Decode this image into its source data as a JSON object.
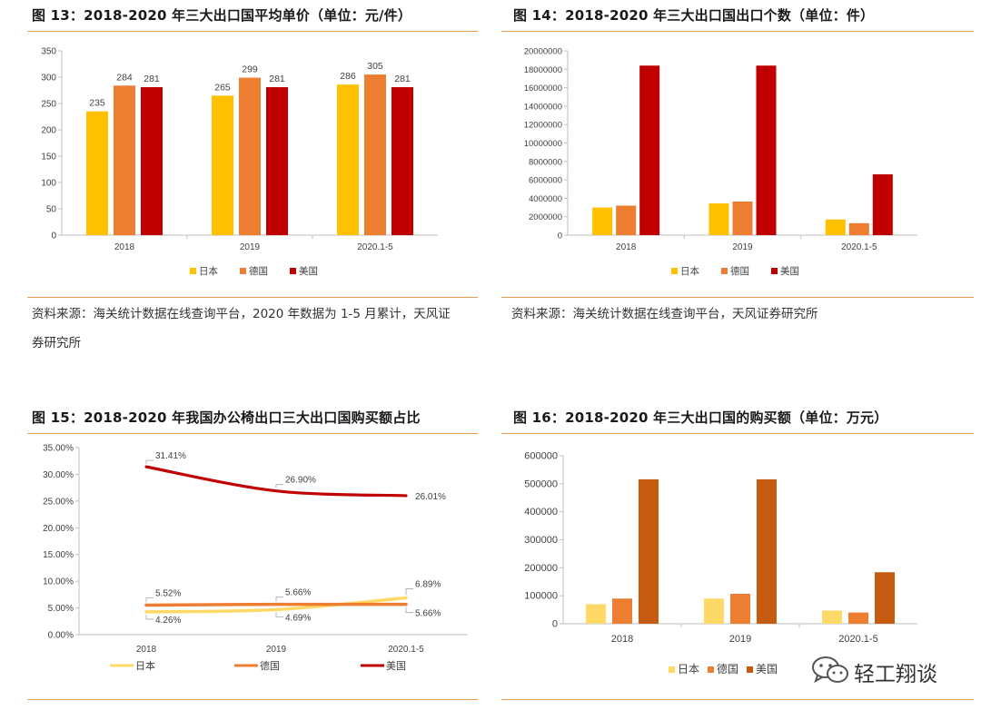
{
  "colors": {
    "japan": "#FFC000",
    "germany": "#ED7D31",
    "usa": "#C00000",
    "fig16_japan": "#FFD966",
    "fig16_germany": "#ED7D31",
    "fig16_usa": "#C55A11",
    "rule": "#E99B52"
  },
  "source_1": "资料来源：海关统计数据在线查询平台，2020 年数据为 1-5 月累计，天风证",
  "source_1b": "券研究所",
  "source_2": "资料来源：海关统计数据在线查询平台，天风证券研究所",
  "watermark": {
    "icon": "wechat-icon",
    "text": "轻工翔谈"
  },
  "chart_data": [
    {
      "id": "fig13",
      "type": "bar",
      "title": "图 13：2018-2020 年三大出口国平均单价（单位：元/件）",
      "categories": [
        "2018",
        "2019",
        "2020.1-5"
      ],
      "series": [
        {
          "name": "日本",
          "values": [
            235,
            265,
            286
          ]
        },
        {
          "name": "德国",
          "values": [
            284,
            299,
            305
          ]
        },
        {
          "name": "美国",
          "values": [
            281,
            281,
            281
          ]
        }
      ],
      "ylim": [
        0,
        350
      ],
      "yticks": [
        "0",
        "50",
        "100",
        "150",
        "200",
        "250",
        "300",
        "350"
      ],
      "data_labels": true,
      "legend": "bottom"
    },
    {
      "id": "fig14",
      "type": "bar",
      "title": "图 14：2018-2020 年三大出口国出口个数（单位：件）",
      "categories": [
        "2018",
        "2019",
        "2020.1-5"
      ],
      "series": [
        {
          "name": "日本",
          "values": [
            3000000,
            3450000,
            1700000
          ]
        },
        {
          "name": "德国",
          "values": [
            3200000,
            3650000,
            1300000
          ]
        },
        {
          "name": "美国",
          "values": [
            18400000,
            18400000,
            6600000
          ]
        }
      ],
      "ylim": [
        0,
        20000000
      ],
      "yticks": [
        "0",
        "2000000",
        "4000000",
        "6000000",
        "8000000",
        "10000000",
        "12000000",
        "14000000",
        "16000000",
        "18000000",
        "20000000"
      ],
      "legend": "bottom"
    },
    {
      "id": "fig15",
      "type": "line",
      "title": "图 15：2018-2020 年我国办公椅出口三大出口国购买额占比",
      "categories": [
        "2018",
        "2019",
        "2020.1-5"
      ],
      "series": [
        {
          "name": "日本",
          "values": [
            4.26,
            4.69,
            6.89
          ],
          "labels": [
            "4.26%",
            "4.69%",
            "6.89%"
          ]
        },
        {
          "name": "德国",
          "values": [
            5.52,
            5.66,
            5.66
          ],
          "labels": [
            "5.52%",
            "5.66%",
            "5.66%"
          ]
        },
        {
          "name": "美国",
          "values": [
            31.41,
            26.9,
            26.01
          ],
          "labels": [
            "31.41%",
            "26.90%",
            "26.01%"
          ]
        }
      ],
      "ylim": [
        0,
        35
      ],
      "yticks": [
        "0.00%",
        "5.00%",
        "10.00%",
        "15.00%",
        "20.00%",
        "25.00%",
        "30.00%",
        "35.00%"
      ],
      "legend": "bottom"
    },
    {
      "id": "fig16",
      "type": "bar",
      "title": "图 16：2018-2020 年三大出口国的购买额（单位：万元）",
      "categories": [
        "2018",
        "2019",
        "2020.1-5"
      ],
      "series": [
        {
          "name": "日本",
          "values": [
            70000,
            90000,
            47000
          ]
        },
        {
          "name": "德国",
          "values": [
            90000,
            107000,
            40000
          ]
        },
        {
          "name": "美国",
          "values": [
            516000,
            516000,
            184000
          ]
        }
      ],
      "ylim": [
        0,
        600000
      ],
      "yticks": [
        "0",
        "100000",
        "200000",
        "300000",
        "400000",
        "500000",
        "600000"
      ],
      "legend": "bottom"
    }
  ]
}
